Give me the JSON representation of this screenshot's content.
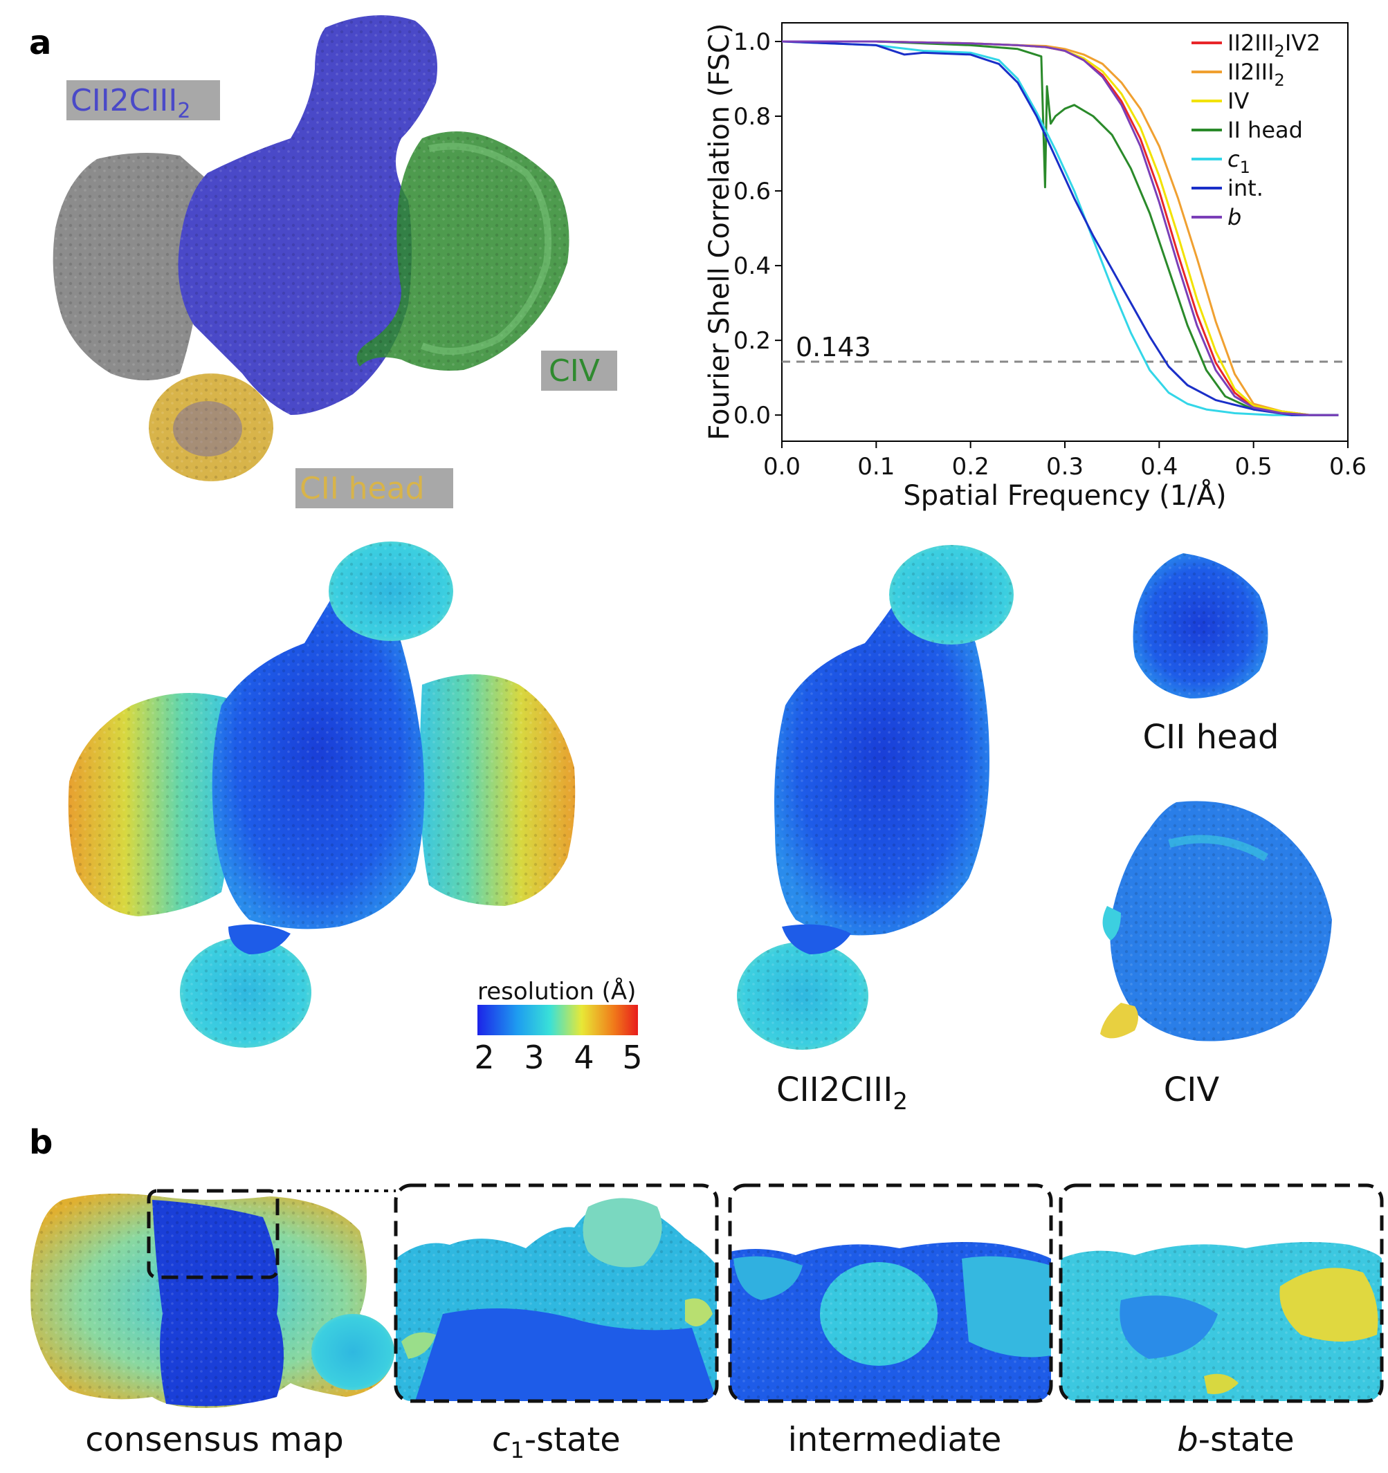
{
  "panels": {
    "a": {
      "letter": "a"
    },
    "b": {
      "letter": "b"
    }
  },
  "top_map_labels": {
    "cii2ciii2": "CII2CIII",
    "cii2ciii2_sub": "2",
    "civ": "CIV",
    "cii_head": "CII head",
    "label_bg": "#a8a8a8",
    "blue": "#4a49c8",
    "green": "#2f8a2f",
    "gold": "#d8b44a",
    "grey": "#8c8c8c"
  },
  "chart_data": {
    "type": "line",
    "xlabel": "Spatial Frequency (1/Å)",
    "ylabel": "Fourier Shell Correlation (FSC)",
    "xlim": [
      0.0,
      0.6
    ],
    "ylim": [
      -0.07,
      1.05
    ],
    "xticks": [
      "0.0",
      "0.1",
      "0.2",
      "0.3",
      "0.4",
      "0.5",
      "0.6"
    ],
    "yticks": [
      "0.0",
      "0.2",
      "0.4",
      "0.6",
      "0.8",
      "1.0"
    ],
    "legend_position": "top-right",
    "threshold": {
      "value": 0.143,
      "label": "0.143"
    },
    "series": [
      {
        "name": "II2III",
        "sub": "2",
        "suffix": "IV2",
        "color": "#e8262a",
        "x": [
          0.0,
          0.1,
          0.2,
          0.25,
          0.28,
          0.3,
          0.32,
          0.34,
          0.36,
          0.38,
          0.4,
          0.42,
          0.44,
          0.46,
          0.48,
          0.5,
          0.53,
          0.56,
          0.59
        ],
        "y": [
          1.0,
          1.0,
          0.995,
          0.99,
          0.985,
          0.975,
          0.95,
          0.91,
          0.84,
          0.74,
          0.6,
          0.43,
          0.27,
          0.14,
          0.06,
          0.02,
          0.01,
          0.0,
          0.0
        ]
      },
      {
        "name": "II2III",
        "sub": "2",
        "suffix": "",
        "color": "#f0a030",
        "x": [
          0.0,
          0.1,
          0.2,
          0.25,
          0.28,
          0.3,
          0.32,
          0.34,
          0.36,
          0.38,
          0.4,
          0.42,
          0.44,
          0.46,
          0.48,
          0.5,
          0.53,
          0.56,
          0.59
        ],
        "y": [
          1.0,
          1.0,
          0.995,
          0.99,
          0.988,
          0.98,
          0.965,
          0.94,
          0.89,
          0.82,
          0.72,
          0.58,
          0.42,
          0.25,
          0.11,
          0.03,
          0.01,
          0.0,
          0.0
        ]
      },
      {
        "name": "IV",
        "sub": "",
        "suffix": "",
        "color": "#f2e200",
        "x": [
          0.0,
          0.1,
          0.2,
          0.25,
          0.28,
          0.3,
          0.32,
          0.34,
          0.36,
          0.38,
          0.4,
          0.42,
          0.44,
          0.46,
          0.48,
          0.5,
          0.53,
          0.56,
          0.59
        ],
        "y": [
          1.0,
          1.0,
          0.995,
          0.99,
          0.985,
          0.975,
          0.955,
          0.92,
          0.86,
          0.77,
          0.64,
          0.48,
          0.31,
          0.17,
          0.07,
          0.025,
          0.01,
          0.0,
          0.0
        ]
      },
      {
        "name": "II head",
        "sub": "",
        "suffix": "",
        "color": "#2a8a2a",
        "x": [
          0.0,
          0.1,
          0.2,
          0.25,
          0.275,
          0.279,
          0.281,
          0.285,
          0.29,
          0.3,
          0.31,
          0.33,
          0.35,
          0.37,
          0.39,
          0.41,
          0.43,
          0.45,
          0.47,
          0.5,
          0.53,
          0.56,
          0.59
        ],
        "y": [
          1.0,
          1.0,
          0.99,
          0.98,
          0.96,
          0.61,
          0.88,
          0.78,
          0.8,
          0.82,
          0.83,
          0.8,
          0.75,
          0.66,
          0.54,
          0.39,
          0.24,
          0.12,
          0.05,
          0.015,
          0.005,
          0.0,
          0.0
        ]
      },
      {
        "name": "c",
        "sub": "1",
        "suffix": "",
        "color": "#33d6e8",
        "italic": true,
        "x": [
          0.0,
          0.1,
          0.15,
          0.2,
          0.23,
          0.25,
          0.27,
          0.29,
          0.31,
          0.33,
          0.35,
          0.37,
          0.39,
          0.41,
          0.43,
          0.45,
          0.48,
          0.52,
          0.56,
          0.59
        ],
        "y": [
          1.0,
          0.99,
          0.975,
          0.97,
          0.95,
          0.9,
          0.81,
          0.71,
          0.6,
          0.47,
          0.34,
          0.22,
          0.12,
          0.06,
          0.03,
          0.015,
          0.005,
          0.0,
          0.0,
          0.0
        ]
      },
      {
        "name": "int.",
        "sub": "",
        "suffix": "",
        "color": "#1a2fc8",
        "x": [
          0.0,
          0.1,
          0.13,
          0.15,
          0.2,
          0.23,
          0.25,
          0.27,
          0.29,
          0.31,
          0.33,
          0.35,
          0.37,
          0.39,
          0.41,
          0.43,
          0.46,
          0.5,
          0.54,
          0.59
        ],
        "y": [
          1.0,
          0.99,
          0.965,
          0.97,
          0.965,
          0.94,
          0.89,
          0.8,
          0.69,
          0.58,
          0.48,
          0.39,
          0.3,
          0.21,
          0.13,
          0.08,
          0.04,
          0.015,
          0.0,
          0.0
        ]
      },
      {
        "name": "b",
        "sub": "",
        "suffix": "",
        "color": "#7b3fb8",
        "italic": true,
        "x": [
          0.0,
          0.1,
          0.2,
          0.25,
          0.28,
          0.3,
          0.32,
          0.34,
          0.36,
          0.38,
          0.4,
          0.42,
          0.44,
          0.46,
          0.48,
          0.5,
          0.53,
          0.56,
          0.59
        ],
        "y": [
          1.0,
          1.0,
          0.995,
          0.99,
          0.985,
          0.975,
          0.95,
          0.905,
          0.83,
          0.72,
          0.57,
          0.4,
          0.24,
          0.12,
          0.05,
          0.02,
          0.005,
          0.0,
          0.0
        ]
      }
    ]
  },
  "colorbar": {
    "title": "resolution (Å)",
    "ticks": [
      "2",
      "3",
      "4",
      "5"
    ],
    "colors": [
      "#1c23e8",
      "#1e9df0",
      "#39e0d8",
      "#e8e836",
      "#f07a1a",
      "#e81c1c"
    ]
  },
  "middle_captions": {
    "cii_head": "CII head",
    "cii2ciii2": "CII2CIII",
    "cii2ciii2_sub": "2",
    "civ": "CIV"
  },
  "bottom_captions": {
    "consensus": "consensus map",
    "c1_main": "c",
    "c1_sub": "1",
    "c1_tail": "-state",
    "intermediate": "intermediate",
    "b_main": "b",
    "b_tail": "-state"
  }
}
